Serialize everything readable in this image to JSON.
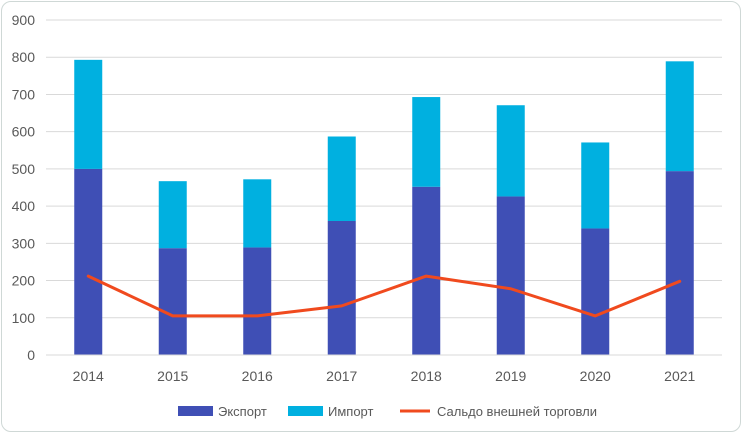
{
  "chart_data": {
    "type": "bar",
    "stacked": true,
    "categories": [
      "2014",
      "2015",
      "2016",
      "2017",
      "2018",
      "2019",
      "2020",
      "2021"
    ],
    "series": [
      {
        "name": "Экспорт",
        "type": "bar",
        "color": "#3f4fb5",
        "values": [
          500,
          287,
          289,
          360,
          452,
          426,
          340,
          494
        ]
      },
      {
        "name": "Импорт",
        "type": "bar",
        "color": "#00b0e0",
        "values": [
          293,
          180,
          183,
          227,
          241,
          245,
          231,
          295
        ]
      },
      {
        "name": "Сальдо внешней торговли",
        "type": "line",
        "color": "#f04a1e",
        "values": [
          212,
          105,
          105,
          132,
          212,
          178,
          105,
          198
        ]
      }
    ],
    "ylim": [
      0,
      900
    ],
    "yticks": [
      0,
      100,
      200,
      300,
      400,
      500,
      600,
      700,
      800,
      900
    ],
    "grid": true,
    "legend": "bottom"
  }
}
